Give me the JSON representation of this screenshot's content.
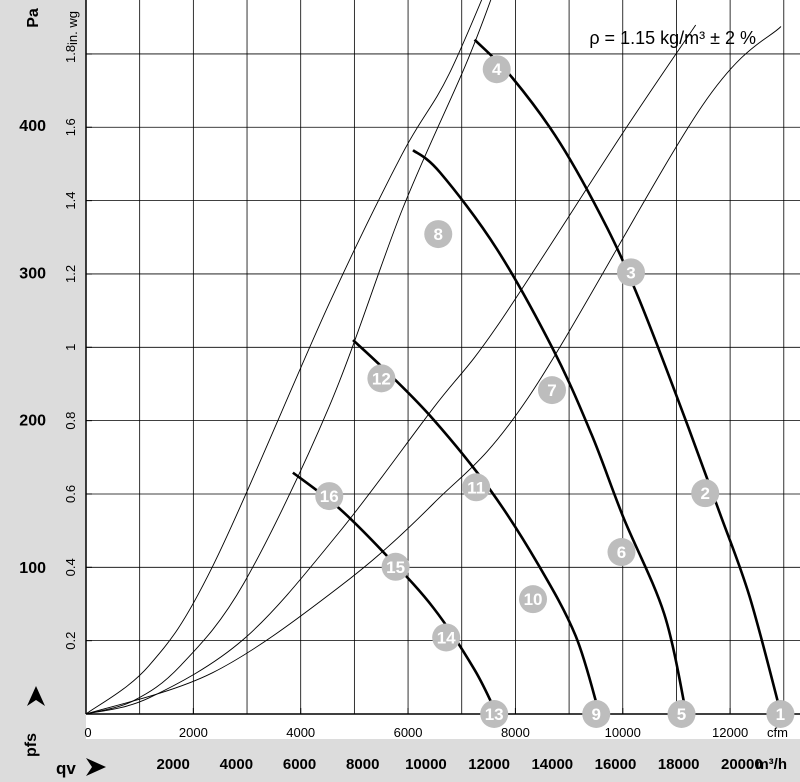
{
  "chart_data": {
    "type": "line",
    "annotation": "ρ = 1.15 kg/m³ ± 2 %",
    "y_unit_pa": "Pa",
    "y_unit_inwg": "in. wg",
    "x_unit_cfm": "cfm",
    "x_unit_m3h": "m³/h",
    "x_label": "qv",
    "y_label": "pfs",
    "pa_ticks": [
      "100",
      "200",
      "300",
      "400"
    ],
    "inwg_ticks": [
      "0.2",
      "0.4",
      "0.6",
      "0.8",
      "1",
      "1.2",
      "1.4",
      "1.6",
      "1.8"
    ],
    "cfm_ticks": [
      "0",
      "2000",
      "4000",
      "6000",
      "8000",
      "10000",
      "12000"
    ],
    "m3h_ticks": [
      "2000",
      "4000",
      "6000",
      "8000",
      "10000",
      "12000",
      "14000",
      "16000",
      "18000",
      "20000"
    ],
    "xlim_m3h": [
      0,
      22600
    ],
    "ylim_pa": [
      0,
      485
    ],
    "fan_curves": [
      {
        "points": [
          [
            12300,
            458
          ],
          [
            13500,
            432
          ],
          [
            15000,
            388
          ],
          [
            16500,
            330
          ],
          [
            17500,
            282
          ],
          [
            18800,
            210
          ],
          [
            20000,
            140
          ],
          [
            21000,
            80
          ],
          [
            22000,
            0
          ]
        ]
      },
      {
        "points": [
          [
            10350,
            383
          ],
          [
            11200,
            368
          ],
          [
            13000,
            316
          ],
          [
            14800,
            247
          ],
          [
            16000,
            190
          ],
          [
            17000,
            134
          ],
          [
            18300,
            68
          ],
          [
            19000,
            0
          ]
        ]
      },
      {
        "points": [
          [
            8450,
            254
          ],
          [
            9500,
            233
          ],
          [
            11000,
            200
          ],
          [
            12800,
            152
          ],
          [
            14300,
            102
          ],
          [
            15500,
            53
          ],
          [
            16250,
            0
          ]
        ]
      },
      {
        "points": [
          [
            6550,
            164
          ],
          [
            8000,
            140
          ],
          [
            9500,
            108
          ],
          [
            11000,
            72
          ],
          [
            12300,
            30
          ],
          [
            13000,
            0
          ]
        ]
      }
    ],
    "system_curves": [
      {
        "points": [
          [
            0,
            0
          ],
          [
            4000,
            28
          ],
          [
            8000,
            86
          ],
          [
            11000,
            143
          ],
          [
            14000,
            215
          ],
          [
            19500,
            413
          ],
          [
            22000,
            467
          ]
        ]
      },
      {
        "points": [
          [
            0,
            0
          ],
          [
            2000,
            11
          ],
          [
            5000,
            51
          ],
          [
            8000,
            123
          ],
          [
            11000,
            208
          ],
          [
            13000,
            263
          ],
          [
            17000,
            395
          ],
          [
            19300,
            468
          ]
        ]
      },
      {
        "points": [
          [
            0,
            0
          ],
          [
            1500,
            9
          ],
          [
            3000,
            33
          ],
          [
            5000,
            89
          ],
          [
            7700,
            209
          ],
          [
            10000,
            342
          ],
          [
            12000,
            440
          ],
          [
            12900,
            490
          ]
        ]
      },
      {
        "points": [
          [
            0,
            0
          ],
          [
            2000,
            33
          ],
          [
            4000,
            100
          ],
          [
            7700,
            279
          ],
          [
            10000,
            380
          ],
          [
            11500,
            435
          ],
          [
            13200,
            520
          ]
        ]
      }
    ],
    "markers": [
      {
        "label": "1",
        "x": 21980,
        "y": 0
      },
      {
        "label": "2",
        "x": 19600,
        "y": 150
      },
      {
        "label": "3",
        "x": 17250,
        "y": 300
      },
      {
        "label": "4",
        "x": 13000,
        "y": 438
      },
      {
        "label": "5",
        "x": 18850,
        "y": 0
      },
      {
        "label": "6",
        "x": 16950,
        "y": 110
      },
      {
        "label": "7",
        "x": 14750,
        "y": 220
      },
      {
        "label": "8",
        "x": 11150,
        "y": 326
      },
      {
        "label": "9",
        "x": 16150,
        "y": 0
      },
      {
        "label": "10",
        "x": 14150,
        "y": 78
      },
      {
        "label": "11",
        "x": 12350,
        "y": 154
      },
      {
        "label": "12",
        "x": 9350,
        "y": 228
      },
      {
        "label": "13",
        "x": 12920,
        "y": 0
      },
      {
        "label": "14",
        "x": 11400,
        "y": 52
      },
      {
        "label": "15",
        "x": 9800,
        "y": 100
      },
      {
        "label": "16",
        "x": 7700,
        "y": 148
      }
    ]
  }
}
